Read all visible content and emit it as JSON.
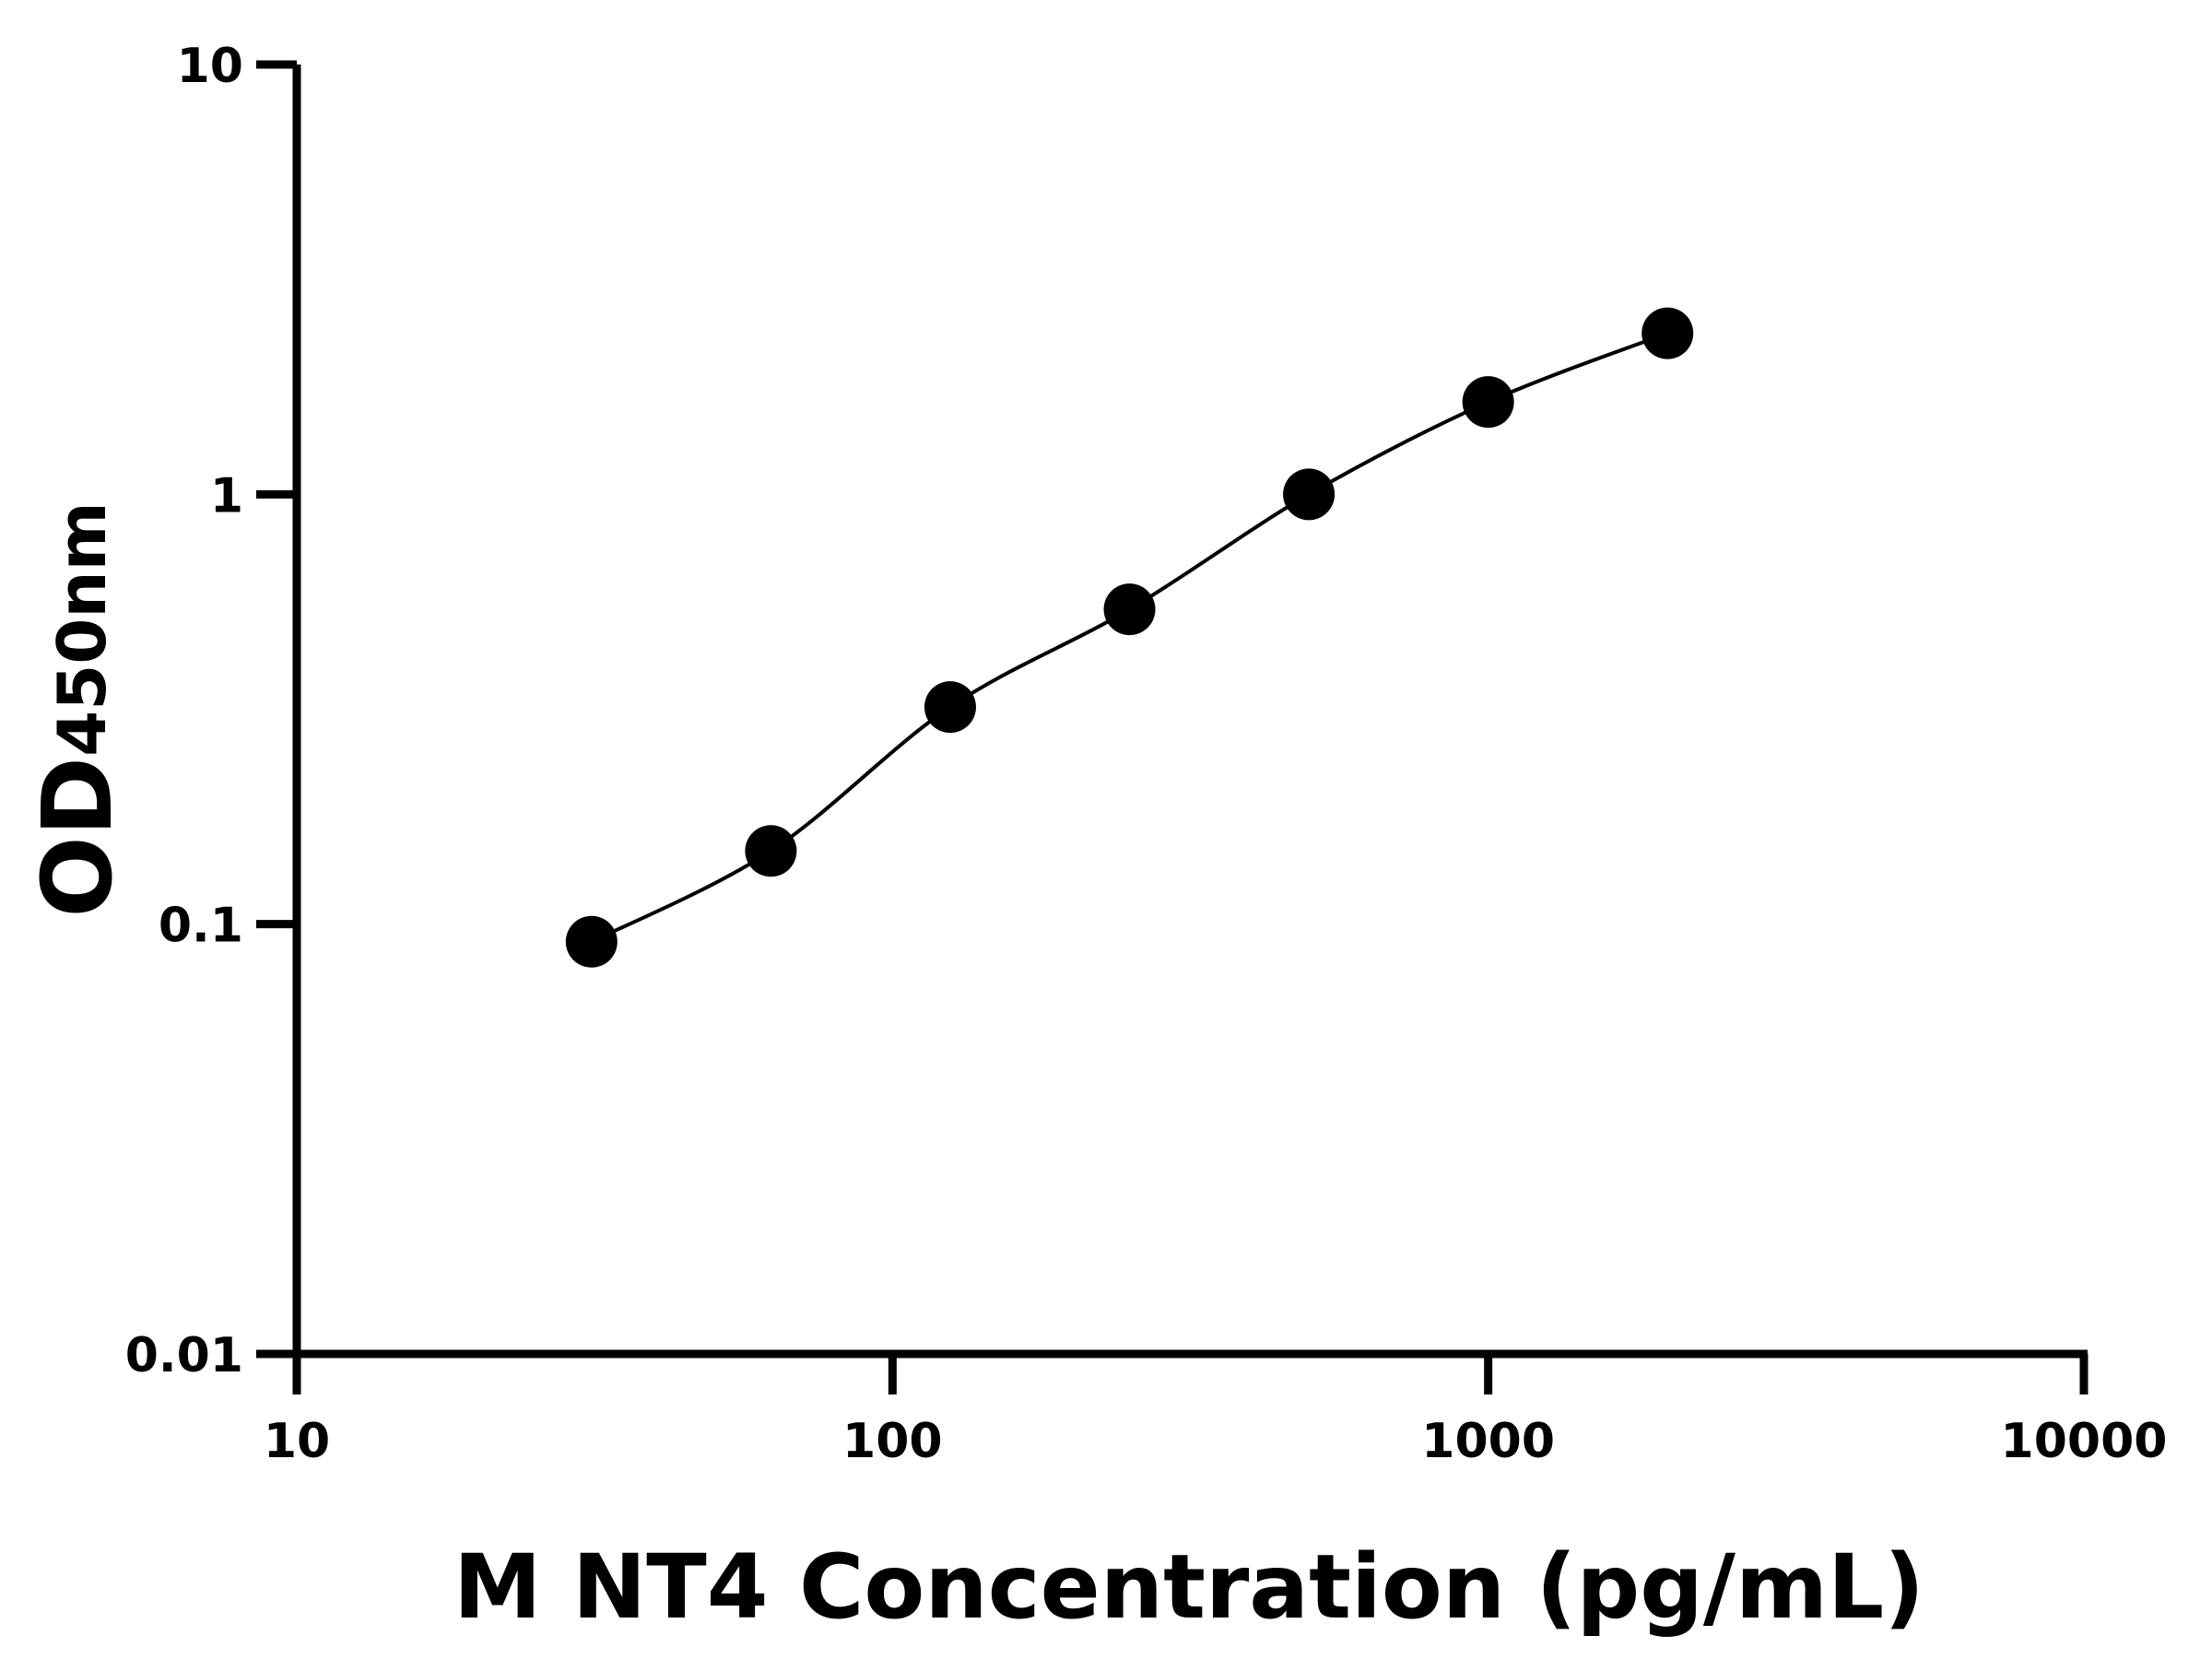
{
  "chart_data": {
    "type": "scatter",
    "xlabel": "M NT4 Concentration (pg/mL)",
    "ylabel_main": "OD",
    "ylabel_sub": "450nm",
    "x_scale": "log",
    "y_scale": "log",
    "xlim": [
      10,
      10000
    ],
    "ylim": [
      0.01,
      10
    ],
    "x_ticks": [
      "10",
      "100",
      "1000",
      "10000"
    ],
    "y_ticks": [
      "0.01",
      "0.1",
      "1",
      "10"
    ],
    "grid": false,
    "fit_curve": true,
    "points": [
      {
        "x": 31.25,
        "y": 0.091
      },
      {
        "x": 62.5,
        "y": 0.148
      },
      {
        "x": 125,
        "y": 0.32
      },
      {
        "x": 250,
        "y": 0.54
      },
      {
        "x": 500,
        "y": 1.0
      },
      {
        "x": 1000,
        "y": 1.64
      },
      {
        "x": 2000,
        "y": 2.37
      }
    ],
    "color": "#000000"
  }
}
